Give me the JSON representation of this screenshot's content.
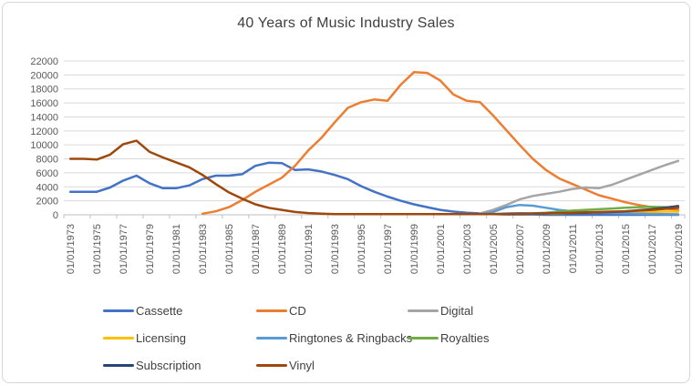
{
  "chart_data": {
    "type": "line",
    "title": "40 Years of Music Industry Sales",
    "x_start_year": 1973,
    "x_end_year": 2019,
    "x_tick_labels": [
      "01/01/1973",
      "01/01/1975",
      "01/01/1977",
      "01/01/1979",
      "01/01/1981",
      "01/01/1983",
      "01/01/1985",
      "01/01/1987",
      "01/01/1989",
      "01/01/1991",
      "01/01/1993",
      "01/01/1995",
      "01/01/1997",
      "01/01/1999",
      "01/01/2001",
      "01/01/2003",
      "01/01/2005",
      "01/01/2007",
      "01/01/2009",
      "01/01/2011",
      "01/01/2013",
      "01/01/2015",
      "01/01/2017",
      "01/01/2019"
    ],
    "y_ticks": [
      0,
      2000,
      4000,
      6000,
      8000,
      10000,
      12000,
      14000,
      16000,
      18000,
      20000,
      22000
    ],
    "ylim": [
      0,
      22000
    ],
    "grid": "horizontal",
    "legend_position": "bottom",
    "axis_color": "#BFBFBF",
    "gridline_color": "#D9D9D9",
    "tick_label_color": "#595959",
    "series": [
      {
        "name": "Cassette",
        "color": "#4472C4",
        "start_year": 1973,
        "values": [
          3300,
          3300,
          3300,
          3900,
          4900,
          5600,
          4500,
          3800,
          3800,
          4200,
          5100,
          5600,
          5600,
          5800,
          7000,
          7450,
          7400,
          6400,
          6500,
          6200,
          5700,
          5100,
          4100,
          3300,
          2600,
          2000,
          1500,
          1100,
          700,
          450,
          300,
          200,
          100,
          50,
          50,
          50,
          0,
          0,
          0,
          0,
          0,
          0,
          0,
          0,
          0,
          0,
          0
        ]
      },
      {
        "name": "CD",
        "color": "#ED7D31",
        "start_year": 1983,
        "values": [
          150,
          500,
          1100,
          2100,
          3300,
          4300,
          5300,
          7000,
          9200,
          11000,
          13200,
          15300,
          16100,
          16500,
          16300,
          18600,
          20400,
          20300,
          19200,
          17200,
          16300,
          16100,
          14200,
          12100,
          10000,
          8000,
          6400,
          5200,
          4400,
          3600,
          2800,
          2300,
          1800,
          1400,
          1100,
          900,
          700
        ]
      },
      {
        "name": "Digital",
        "color": "#A5A5A5",
        "start_year": 2004,
        "values": [
          200,
          700,
          1400,
          2200,
          2700,
          3000,
          3300,
          3700,
          3900,
          3800,
          4300,
          5000,
          5700,
          6400,
          7100,
          7700
        ]
      },
      {
        "name": "Licensing",
        "color": "#FFC000",
        "start_year": 2009,
        "values": [
          150,
          200,
          250,
          300,
          300,
          350,
          350,
          400,
          400,
          450,
          450
        ]
      },
      {
        "name": "Ringtones & Ringbacks",
        "color": "#5B9BD5",
        "start_year": 2004,
        "values": [
          100,
          400,
          1100,
          1400,
          1300,
          1000,
          700,
          500,
          400,
          300,
          250,
          200,
          150,
          120,
          100,
          80
        ]
      },
      {
        "name": "Royalties",
        "color": "#70AD47",
        "start_year": 2008,
        "values": [
          200,
          300,
          450,
          600,
          700,
          800,
          900,
          1000,
          1100,
          1150,
          1100,
          1050
        ]
      },
      {
        "name": "Subscription",
        "color": "#264478",
        "start_year": 2005,
        "values": [
          100,
          150,
          200,
          200,
          200,
          250,
          250,
          300,
          350,
          400,
          500,
          650,
          800,
          1000,
          1250
        ]
      },
      {
        "name": "Vinyl",
        "color": "#9E480E",
        "start_year": 1973,
        "values": [
          8000,
          8000,
          7900,
          8600,
          10100,
          10600,
          9000,
          8200,
          7500,
          6800,
          5700,
          4400,
          3200,
          2300,
          1500,
          1000,
          700,
          400,
          250,
          150,
          100,
          100,
          100,
          100,
          100,
          100,
          100,
          100,
          100,
          100,
          100,
          100,
          100,
          100,
          100,
          150,
          200,
          250,
          300,
          350,
          400,
          450,
          500,
          600,
          700,
          850,
          1000
        ]
      }
    ]
  }
}
